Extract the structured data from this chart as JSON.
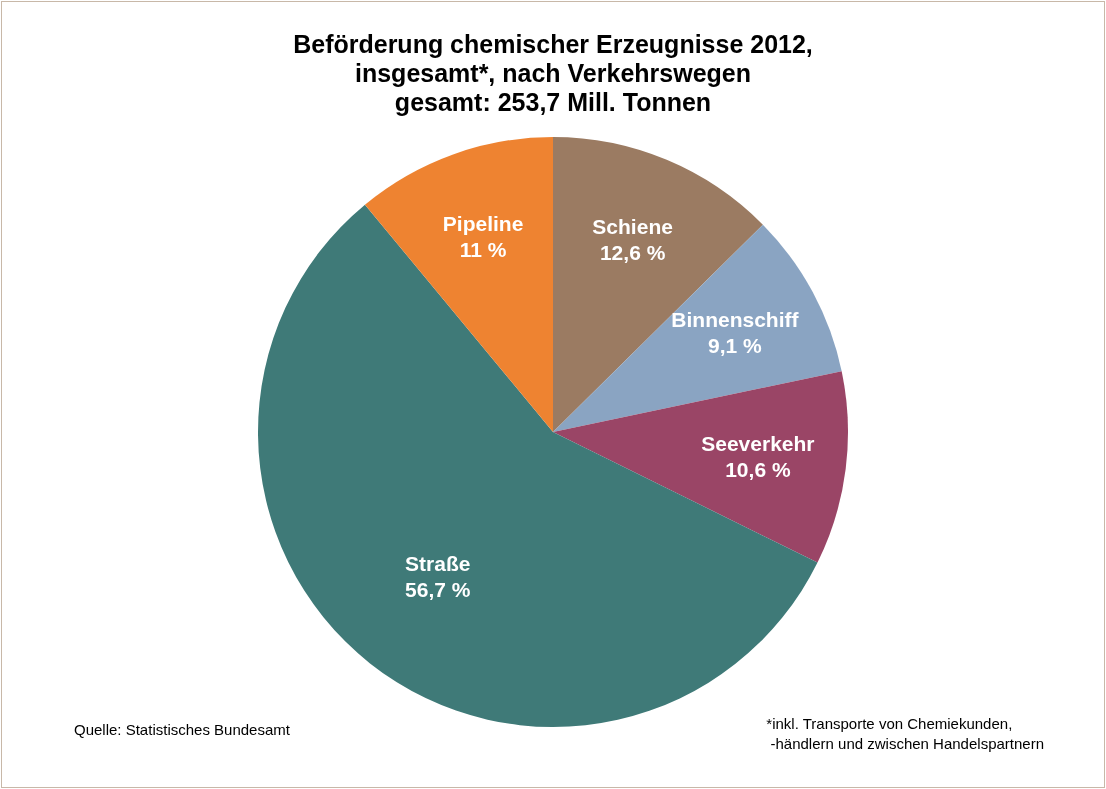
{
  "chart_data": {
    "type": "pie",
    "title": "Beförderung chemischer Erzeugnisse 2012,\ninsgesamt*, nach Verkehrswegen\ngesamt: 253,7 Mill.  Tonnen",
    "categories": [
      "Schiene",
      "Binnenschiff",
      "Seeverkehr",
      "Straße",
      "Pipeline"
    ],
    "values": [
      12.6,
      9.1,
      10.6,
      56.7,
      11
    ],
    "colors": [
      "#9b7b62",
      "#8aa4c2",
      "#9a4566",
      "#3f7a78",
      "#ee8331"
    ],
    "value_labels": [
      "12,6 %",
      "9,1 %",
      "10,6 %",
      "56,7 %",
      "11 %"
    ],
    "legend": false,
    "annotations": [
      "Quelle: Statistisches Bundesamt",
      "*inkl. Transporte von Chemiekunden,\n -händlern und zwischen Handelspartnern"
    ]
  }
}
